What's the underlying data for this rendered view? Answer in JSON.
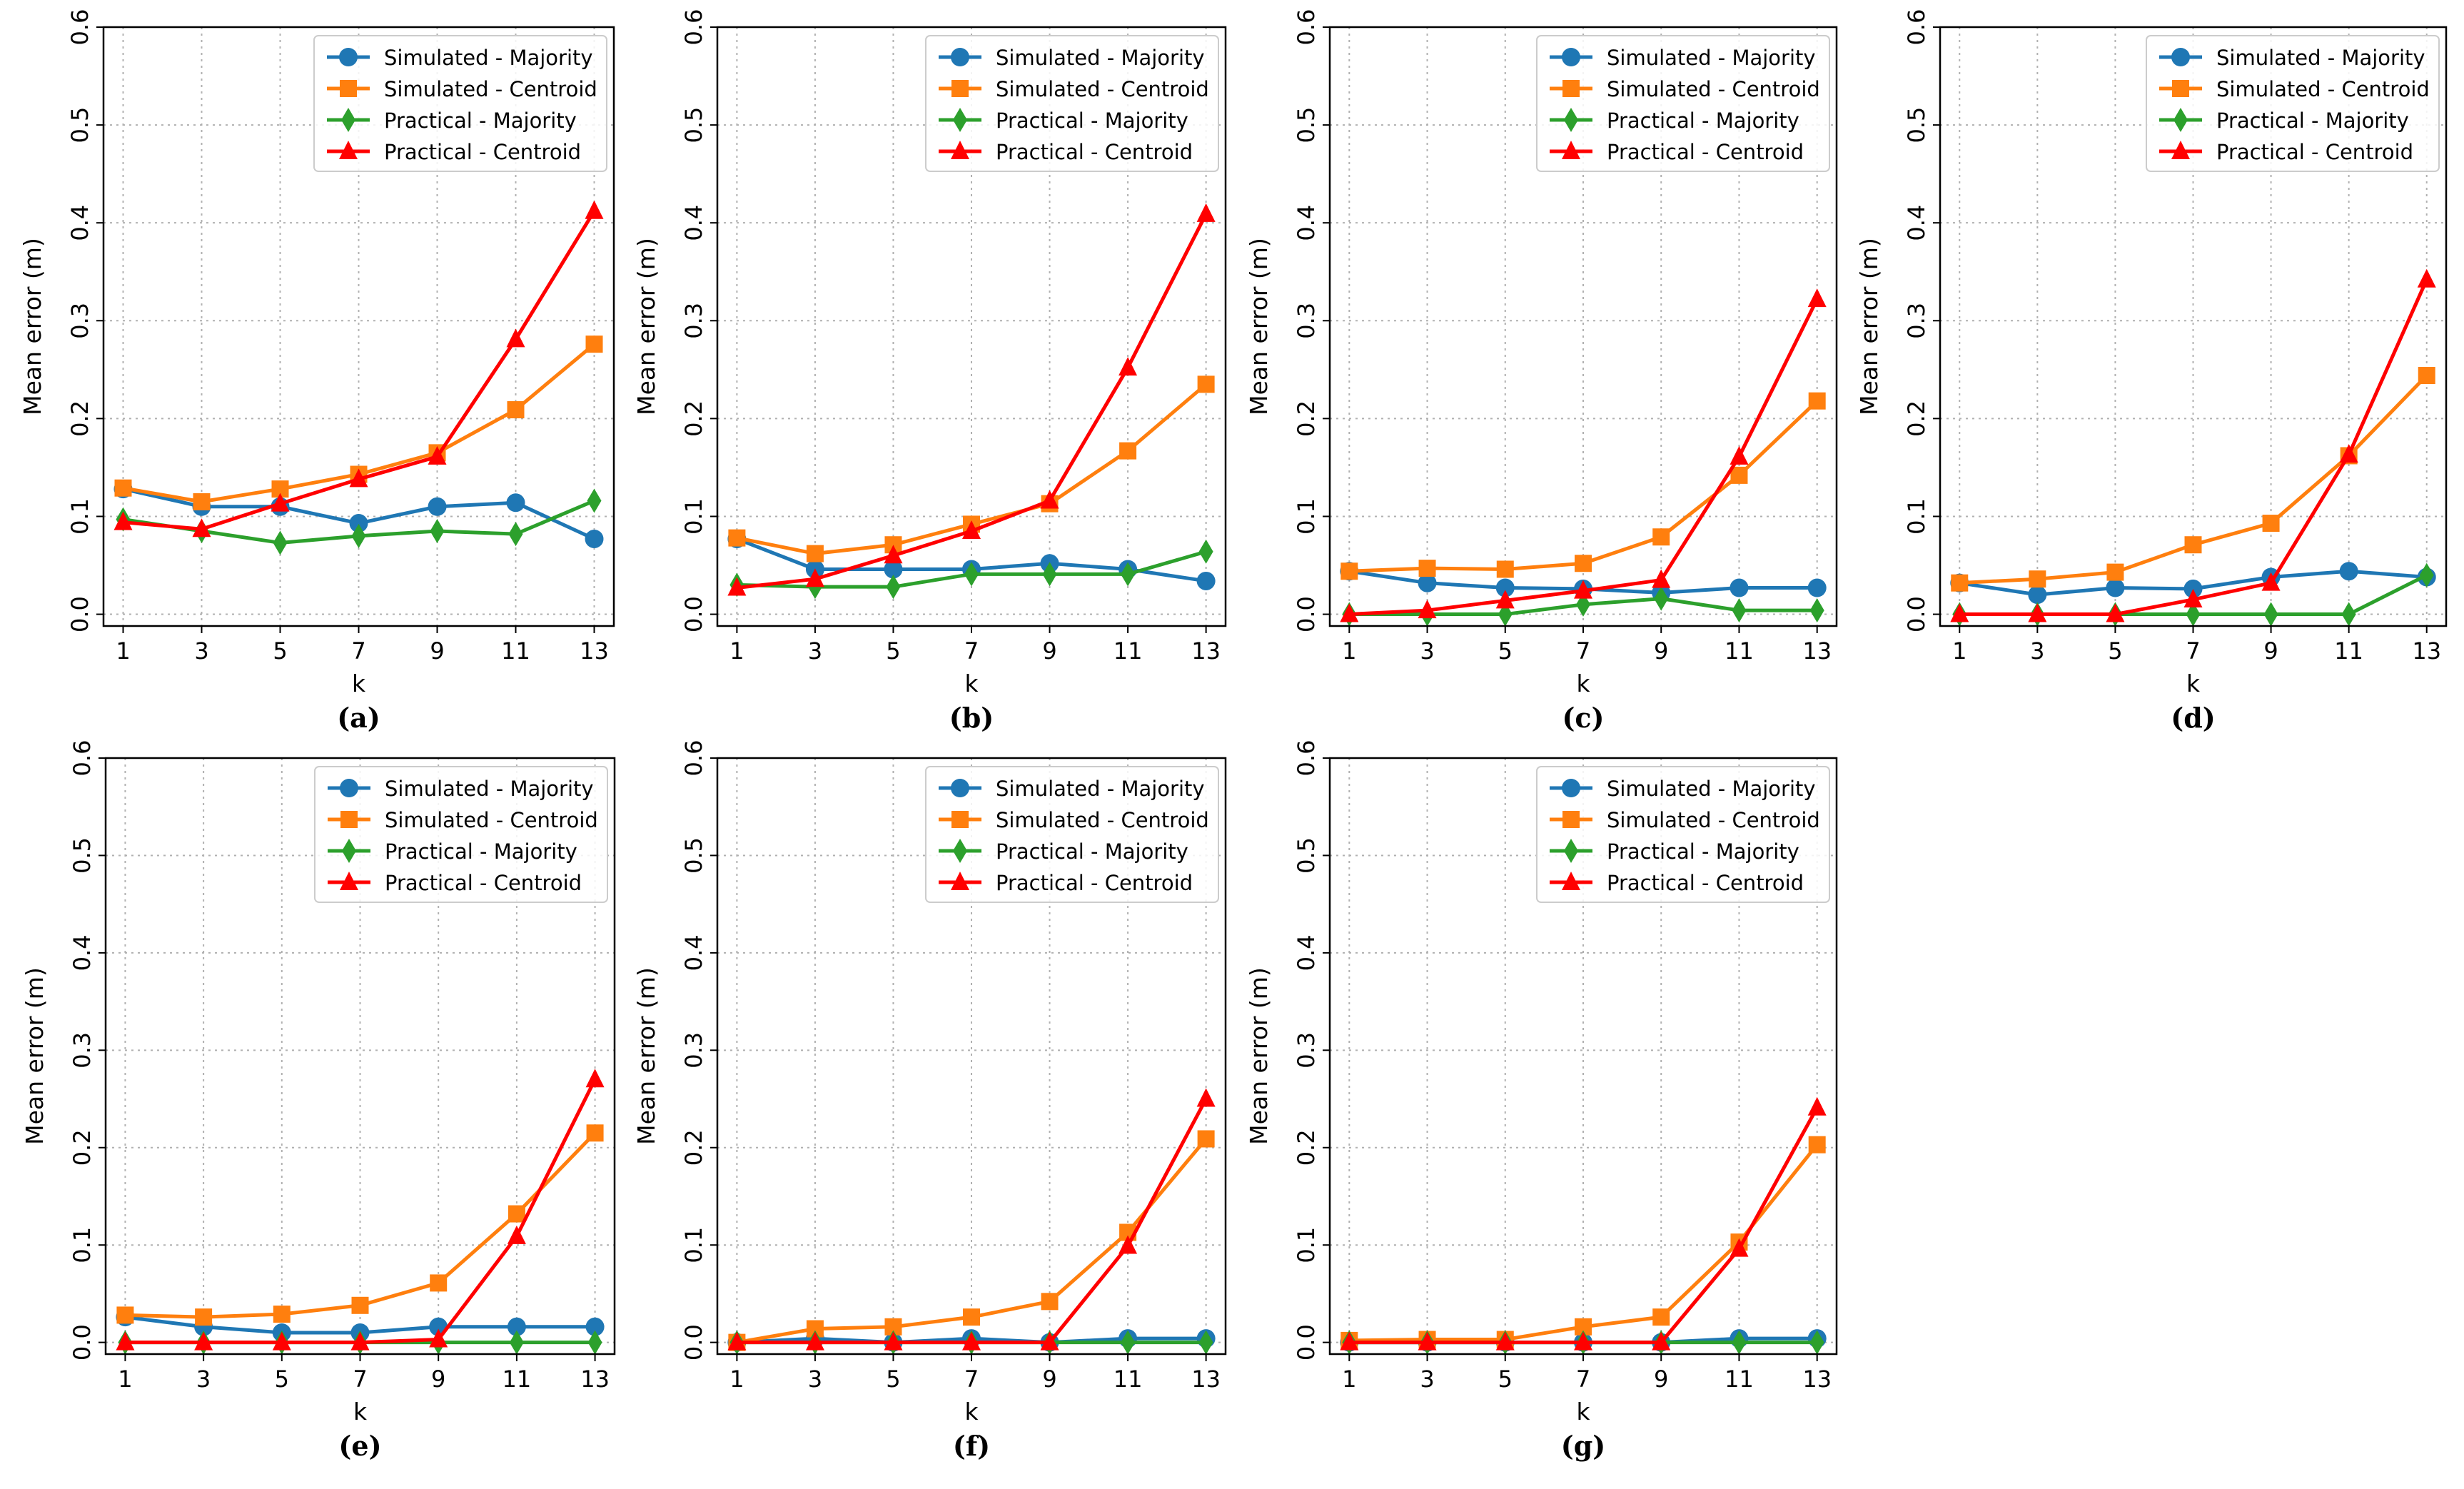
{
  "figure": {
    "ylabel": "Mean error (m)",
    "xlabel": "k"
  },
  "chart_data": [
    {
      "type": "line",
      "panel_label": "(a)",
      "title": "",
      "xlabel": "k",
      "ylabel": "Mean error (m)",
      "x": [
        1,
        3,
        5,
        7,
        9,
        11,
        13
      ],
      "xticks": [
        "1",
        "3",
        "5",
        "7",
        "9",
        "11",
        "13"
      ],
      "ylim": [
        0,
        0.6
      ],
      "yticks": [
        "0.0",
        "0.1",
        "0.2",
        "0.3",
        "0.4",
        "0.5",
        "0.6"
      ],
      "grid": true,
      "legend_position": "top-right",
      "series": [
        {
          "name": "Simulated - Majority",
          "color": "#1f77b4",
          "marker": "circle",
          "values": [
            0.128,
            0.11,
            0.11,
            0.093,
            0.11,
            0.114,
            0.077
          ]
        },
        {
          "name": "Simulated - Centroid",
          "color": "#ff7f0e",
          "marker": "square",
          "values": [
            0.129,
            0.115,
            0.128,
            0.143,
            0.165,
            0.209,
            0.276
          ]
        },
        {
          "name": "Practical - Majority",
          "color": "#2ca02c",
          "marker": "diamond",
          "values": [
            0.097,
            0.085,
            0.073,
            0.08,
            0.085,
            0.082,
            0.116
          ]
        },
        {
          "name": "Practical - Centroid",
          "color": "#ff0000",
          "marker": "triangle",
          "values": [
            0.094,
            0.087,
            0.113,
            0.138,
            0.161,
            0.281,
            0.412
          ]
        }
      ]
    },
    {
      "type": "line",
      "panel_label": "(b)",
      "title": "",
      "xlabel": "k",
      "ylabel": "Mean error (m)",
      "x": [
        1,
        3,
        5,
        7,
        9,
        11,
        13
      ],
      "xticks": [
        "1",
        "3",
        "5",
        "7",
        "9",
        "11",
        "13"
      ],
      "ylim": [
        0,
        0.6
      ],
      "yticks": [
        "0.0",
        "0.1",
        "0.2",
        "0.3",
        "0.4",
        "0.5",
        "0.6"
      ],
      "grid": true,
      "legend_position": "top-right",
      "series": [
        {
          "name": "Simulated - Majority",
          "color": "#1f77b4",
          "marker": "circle",
          "values": [
            0.077,
            0.046,
            0.046,
            0.046,
            0.052,
            0.046,
            0.034
          ]
        },
        {
          "name": "Simulated - Centroid",
          "color": "#ff7f0e",
          "marker": "square",
          "values": [
            0.078,
            0.062,
            0.071,
            0.092,
            0.113,
            0.167,
            0.235
          ]
        },
        {
          "name": "Practical - Majority",
          "color": "#2ca02c",
          "marker": "diamond",
          "values": [
            0.03,
            0.028,
            0.028,
            0.041,
            0.041,
            0.041,
            0.064
          ]
        },
        {
          "name": "Practical - Centroid",
          "color": "#ff0000",
          "marker": "triangle",
          "values": [
            0.027,
            0.036,
            0.06,
            0.085,
            0.116,
            0.252,
            0.409
          ]
        }
      ]
    },
    {
      "type": "line",
      "panel_label": "(c)",
      "title": "",
      "xlabel": "k",
      "ylabel": "Mean error (m)",
      "x": [
        1,
        3,
        5,
        7,
        9,
        11,
        13
      ],
      "xticks": [
        "1",
        "3",
        "5",
        "7",
        "9",
        "11",
        "13"
      ],
      "ylim": [
        0,
        0.6
      ],
      "yticks": [
        "0.0",
        "0.1",
        "0.2",
        "0.3",
        "0.4",
        "0.5",
        "0.6"
      ],
      "grid": true,
      "legend_position": "top-right",
      "series": [
        {
          "name": "Simulated - Majority",
          "color": "#1f77b4",
          "marker": "circle",
          "values": [
            0.044,
            0.032,
            0.027,
            0.026,
            0.022,
            0.027,
            0.027
          ]
        },
        {
          "name": "Simulated - Centroid",
          "color": "#ff7f0e",
          "marker": "square",
          "values": [
            0.044,
            0.047,
            0.046,
            0.052,
            0.079,
            0.142,
            0.218
          ]
        },
        {
          "name": "Practical - Majority",
          "color": "#2ca02c",
          "marker": "diamond",
          "values": [
            0.0,
            0.0,
            0.0,
            0.01,
            0.016,
            0.004,
            0.004
          ]
        },
        {
          "name": "Practical - Centroid",
          "color": "#ff0000",
          "marker": "triangle",
          "values": [
            0.0,
            0.004,
            0.014,
            0.024,
            0.035,
            0.161,
            0.322
          ]
        }
      ]
    },
    {
      "type": "line",
      "panel_label": "(d)",
      "title": "",
      "xlabel": "k",
      "ylabel": "Mean error (m)",
      "x": [
        1,
        3,
        5,
        7,
        9,
        11,
        13
      ],
      "xticks": [
        "1",
        "3",
        "5",
        "7",
        "9",
        "11",
        "13"
      ],
      "ylim": [
        0,
        0.6
      ],
      "yticks": [
        "0.0",
        "0.1",
        "0.2",
        "0.3",
        "0.4",
        "0.5",
        "0.6"
      ],
      "grid": true,
      "legend_position": "top-right",
      "series": [
        {
          "name": "Simulated - Majority",
          "color": "#1f77b4",
          "marker": "circle",
          "values": [
            0.032,
            0.02,
            0.027,
            0.026,
            0.038,
            0.044,
            0.038
          ]
        },
        {
          "name": "Simulated - Centroid",
          "color": "#ff7f0e",
          "marker": "square",
          "values": [
            0.032,
            0.036,
            0.043,
            0.071,
            0.093,
            0.162,
            0.244
          ]
        },
        {
          "name": "Practical - Majority",
          "color": "#2ca02c",
          "marker": "diamond",
          "values": [
            0.0,
            0.0,
            0.0,
            0.0,
            0.0,
            0.0,
            0.04
          ]
        },
        {
          "name": "Practical - Centroid",
          "color": "#ff0000",
          "marker": "triangle",
          "values": [
            0.0,
            0.0,
            0.0,
            0.015,
            0.032,
            0.163,
            0.342
          ]
        }
      ]
    },
    {
      "type": "line",
      "panel_label": "(e)",
      "title": "",
      "xlabel": "k",
      "ylabel": "Mean error (m)",
      "x": [
        1,
        3,
        5,
        7,
        9,
        11,
        13
      ],
      "xticks": [
        "1",
        "3",
        "5",
        "7",
        "9",
        "11",
        "13"
      ],
      "ylim": [
        0,
        0.6
      ],
      "yticks": [
        "0.0",
        "0.1",
        "0.2",
        "0.3",
        "0.4",
        "0.5",
        "0.6"
      ],
      "grid": true,
      "legend_position": "top-right",
      "series": [
        {
          "name": "Simulated - Majority",
          "color": "#1f77b4",
          "marker": "circle",
          "values": [
            0.026,
            0.016,
            0.01,
            0.01,
            0.016,
            0.016,
            0.016
          ]
        },
        {
          "name": "Simulated - Centroid",
          "color": "#ff7f0e",
          "marker": "square",
          "values": [
            0.028,
            0.026,
            0.029,
            0.038,
            0.061,
            0.132,
            0.215
          ]
        },
        {
          "name": "Practical - Majority",
          "color": "#2ca02c",
          "marker": "diamond",
          "values": [
            0.0,
            0.0,
            0.0,
            0.0,
            0.0,
            0.0,
            0.0
          ]
        },
        {
          "name": "Practical - Centroid",
          "color": "#ff0000",
          "marker": "triangle",
          "values": [
            0.0,
            0.0,
            0.0,
            0.0,
            0.003,
            0.109,
            0.27
          ]
        }
      ]
    },
    {
      "type": "line",
      "panel_label": "(f)",
      "title": "",
      "xlabel": "k",
      "ylabel": "Mean error (m)",
      "x": [
        1,
        3,
        5,
        7,
        9,
        11,
        13
      ],
      "xticks": [
        "1",
        "3",
        "5",
        "7",
        "9",
        "11",
        "13"
      ],
      "ylim": [
        0,
        0.6
      ],
      "yticks": [
        "0.0",
        "0.1",
        "0.2",
        "0.3",
        "0.4",
        "0.5",
        "0.6"
      ],
      "grid": true,
      "legend_position": "top-right",
      "series": [
        {
          "name": "Simulated - Majority",
          "color": "#1f77b4",
          "marker": "circle",
          "values": [
            0.0,
            0.004,
            0.0,
            0.004,
            0.0,
            0.004,
            0.004
          ]
        },
        {
          "name": "Simulated - Centroid",
          "color": "#ff7f0e",
          "marker": "square",
          "values": [
            0.0,
            0.014,
            0.016,
            0.026,
            0.042,
            0.113,
            0.209
          ]
        },
        {
          "name": "Practical - Majority",
          "color": "#2ca02c",
          "marker": "diamond",
          "values": [
            0.0,
            0.0,
            0.0,
            0.0,
            0.0,
            0.0,
            0.0
          ]
        },
        {
          "name": "Practical - Centroid",
          "color": "#ff0000",
          "marker": "triangle",
          "values": [
            0.0,
            0.0,
            0.0,
            0.0,
            0.0,
            0.099,
            0.25
          ]
        }
      ]
    },
    {
      "type": "line",
      "panel_label": "(g)",
      "title": "",
      "xlabel": "k",
      "ylabel": "Mean error (m)",
      "x": [
        1,
        3,
        5,
        7,
        9,
        11,
        13
      ],
      "xticks": [
        "1",
        "3",
        "5",
        "7",
        "9",
        "11",
        "13"
      ],
      "ylim": [
        0,
        0.6
      ],
      "yticks": [
        "0.0",
        "0.1",
        "0.2",
        "0.3",
        "0.4",
        "0.5",
        "0.6"
      ],
      "grid": true,
      "legend_position": "top-right",
      "series": [
        {
          "name": "Simulated - Majority",
          "color": "#1f77b4",
          "marker": "circle",
          "values": [
            0.0,
            0.0,
            0.0,
            0.0,
            0.0,
            0.004,
            0.004
          ]
        },
        {
          "name": "Simulated - Centroid",
          "color": "#ff7f0e",
          "marker": "square",
          "values": [
            0.002,
            0.003,
            0.003,
            0.016,
            0.026,
            0.103,
            0.203
          ]
        },
        {
          "name": "Practical - Majority",
          "color": "#2ca02c",
          "marker": "diamond",
          "values": [
            0.0,
            0.0,
            0.0,
            0.0,
            0.0,
            0.0,
            0.0
          ]
        },
        {
          "name": "Practical - Centroid",
          "color": "#ff0000",
          "marker": "triangle",
          "values": [
            0.0,
            0.0,
            0.0,
            0.0,
            0.0,
            0.096,
            0.241
          ]
        }
      ]
    }
  ]
}
